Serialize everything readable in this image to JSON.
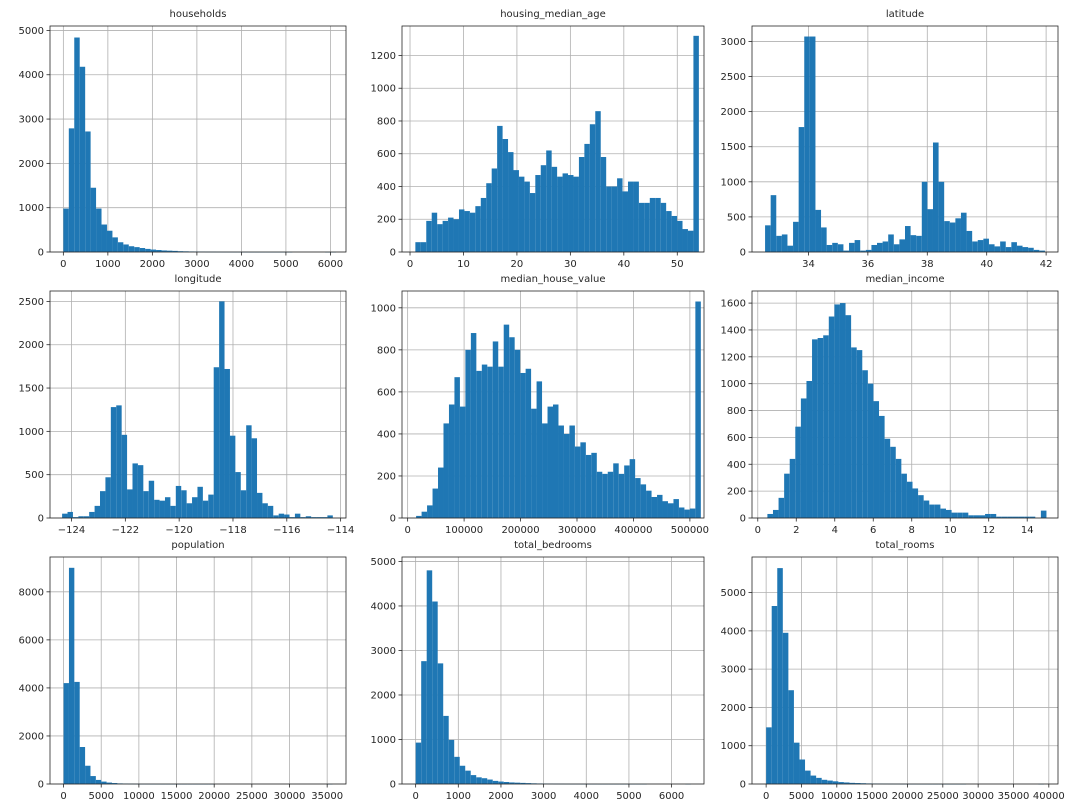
{
  "bar_color": "#1f77b4",
  "chart_data": [
    {
      "type": "bar",
      "title": "households",
      "bin_start": 0,
      "bin_width": 122.5,
      "values": [
        980,
        2790,
        4840,
        4180,
        2720,
        1450,
        980,
        620,
        480,
        330,
        220,
        170,
        130,
        110,
        90,
        70,
        55,
        45,
        35,
        30,
        25,
        18,
        15,
        12,
        10,
        8,
        6,
        5,
        4,
        3,
        3,
        2,
        2,
        2,
        1,
        1,
        1,
        1,
        1,
        1,
        1,
        1,
        0,
        0,
        0,
        0,
        0,
        0,
        1,
        1
      ],
      "xlim": [
        -300,
        6350
      ],
      "ylim": [
        0,
        5100
      ],
      "xticks": [
        0,
        1000,
        2000,
        3000,
        4000,
        5000,
        6000
      ],
      "xtick_labels": [
        "0",
        "1000",
        "2000",
        "3000",
        "4000",
        "5000",
        "6000"
      ],
      "yticks": [
        0,
        1000,
        2000,
        3000,
        4000,
        5000
      ],
      "ytick_labels": [
        "0",
        "1000",
        "2000",
        "3000",
        "4000",
        "5000"
      ],
      "grid": true
    },
    {
      "type": "bar",
      "title": "housing_median_age",
      "bin_start": 1,
      "bin_width": 1.02,
      "values": [
        60,
        60,
        190,
        240,
        170,
        190,
        210,
        200,
        260,
        250,
        240,
        280,
        330,
        420,
        510,
        770,
        690,
        610,
        500,
        460,
        430,
        360,
        470,
        530,
        620,
        520,
        460,
        480,
        470,
        460,
        580,
        660,
        780,
        860,
        580,
        400,
        400,
        450,
        370,
        430,
        430,
        300,
        300,
        330,
        330,
        300,
        250,
        220,
        190,
        140,
        130,
        1320
      ],
      "xlim": [
        -1.5,
        55
      ],
      "ylim": [
        0,
        1380
      ],
      "xticks": [
        0,
        10,
        20,
        30,
        40,
        50
      ],
      "xtick_labels": [
        "0",
        "10",
        "20",
        "30",
        "40",
        "50"
      ],
      "yticks": [
        0,
        200,
        400,
        600,
        800,
        1000,
        1200
      ],
      "ytick_labels": [
        "0",
        "200",
        "400",
        "600",
        "800",
        "1000",
        "1200"
      ],
      "grid": true
    },
    {
      "type": "bar",
      "title": "latitude",
      "bin_start": 32.54,
      "bin_width": 0.1884,
      "values": [
        380,
        810,
        230,
        250,
        90,
        430,
        1780,
        3070,
        3070,
        600,
        350,
        100,
        130,
        110,
        20,
        130,
        170,
        20,
        30,
        100,
        130,
        150,
        250,
        110,
        180,
        370,
        240,
        230,
        1000,
        610,
        1560,
        1000,
        440,
        420,
        480,
        560,
        300,
        150,
        170,
        190,
        110,
        80,
        150,
        70,
        140,
        90,
        70,
        60,
        30,
        20
      ],
      "xlim": [
        32.1,
        42.4
      ],
      "ylim": [
        0,
        3220
      ],
      "xticks": [
        34,
        36,
        38,
        40,
        42
      ],
      "xtick_labels": [
        "34",
        "36",
        "38",
        "40",
        "42"
      ],
      "yticks": [
        0,
        500,
        1000,
        1500,
        2000,
        2500,
        3000
      ],
      "ytick_labels": [
        "0",
        "500",
        "1000",
        "1500",
        "2000",
        "2500",
        "3000"
      ],
      "grid": true
    },
    {
      "type": "bar",
      "title": "longitude",
      "bin_start": -124.35,
      "bin_width": 0.2012,
      "values": [
        50,
        70,
        10,
        20,
        20,
        70,
        140,
        310,
        470,
        1280,
        1300,
        960,
        330,
        630,
        610,
        310,
        430,
        210,
        200,
        240,
        140,
        370,
        320,
        170,
        240,
        360,
        200,
        270,
        1740,
        2500,
        1720,
        950,
        530,
        320,
        1070,
        920,
        290,
        170,
        140,
        30,
        50,
        40,
        10,
        50,
        10,
        20,
        10,
        10,
        10,
        30
      ],
      "xlim": [
        -124.8,
        -113.8
      ],
      "ylim": [
        0,
        2620
      ],
      "xticks": [
        -124,
        -122,
        -120,
        -118,
        -116,
        -114
      ],
      "xtick_labels": [
        "−124",
        "−122",
        "−120",
        "−118",
        "−116",
        "−114"
      ],
      "yticks": [
        0,
        500,
        1000,
        1500,
        2000,
        2500
      ],
      "ytick_labels": [
        "0",
        "500",
        "1000",
        "1500",
        "2000",
        "2500"
      ],
      "grid": true
    },
    {
      "type": "bar",
      "title": "median_house_value",
      "bin_start": 14999,
      "bin_width": 9700,
      "values": [
        10,
        30,
        60,
        140,
        240,
        450,
        540,
        670,
        530,
        800,
        880,
        700,
        730,
        720,
        840,
        720,
        920,
        860,
        800,
        690,
        710,
        520,
        650,
        450,
        530,
        540,
        440,
        400,
        440,
        340,
        360,
        300,
        310,
        220,
        210,
        220,
        260,
        210,
        250,
        280,
        190,
        160,
        130,
        100,
        110,
        80,
        70,
        90,
        50,
        40,
        45,
        1030
      ],
      "xlim": [
        -10000,
        525000
      ],
      "ylim": [
        0,
        1080
      ],
      "xticks": [
        0,
        100000,
        200000,
        300000,
        400000,
        500000
      ],
      "xtick_labels": [
        "0",
        "100000",
        "200000",
        "300000",
        "400000",
        "500000"
      ],
      "yticks": [
        0,
        200,
        400,
        600,
        800,
        1000
      ],
      "ytick_labels": [
        "0",
        "200",
        "400",
        "600",
        "800",
        "1000"
      ],
      "grid": true
    },
    {
      "type": "bar",
      "title": "median_income",
      "bin_start": 0.5,
      "bin_width": 0.29,
      "values": [
        30,
        60,
        150,
        330,
        440,
        680,
        890,
        1020,
        1330,
        1340,
        1360,
        1500,
        1590,
        1600,
        1510,
        1270,
        1250,
        1100,
        1000,
        870,
        760,
        590,
        530,
        440,
        330,
        270,
        220,
        170,
        130,
        100,
        100,
        70,
        60,
        40,
        40,
        40,
        20,
        20,
        20,
        30,
        30,
        10,
        10,
        10,
        10,
        10,
        10,
        10,
        0,
        55
      ],
      "xlim": [
        -0.3,
        15.6
      ],
      "ylim": [
        0,
        1690
      ],
      "xticks": [
        0,
        2,
        4,
        6,
        8,
        10,
        12,
        14
      ],
      "xtick_labels": [
        "0",
        "2",
        "4",
        "6",
        "8",
        "10",
        "12",
        "14"
      ],
      "yticks": [
        0,
        200,
        400,
        600,
        800,
        1000,
        1200,
        1400,
        1600
      ],
      "ytick_labels": [
        "0",
        "200",
        "400",
        "600",
        "800",
        "1000",
        "1200",
        "1400",
        "1600"
      ],
      "grid": true
    },
    {
      "type": "bar",
      "title": "population",
      "bin_start": 3,
      "bin_width": 714,
      "values": [
        4200,
        9000,
        4250,
        1540,
        760,
        330,
        170,
        100,
        60,
        40,
        25,
        18,
        12,
        8,
        6,
        5,
        4,
        3,
        2,
        2,
        1,
        1,
        1,
        1,
        1,
        1,
        1,
        1,
        0,
        0,
        0,
        0,
        0,
        0,
        0,
        0,
        0,
        0,
        0,
        0,
        0,
        0,
        0,
        0,
        0,
        0,
        0,
        0,
        0,
        1
      ],
      "xlim": [
        -1800,
        37500
      ],
      "ylim": [
        0,
        9450
      ],
      "xticks": [
        0,
        5000,
        10000,
        15000,
        20000,
        25000,
        30000,
        35000
      ],
      "xtick_labels": [
        "0",
        "5000",
        "10000",
        "15000",
        "20000",
        "25000",
        "30000",
        "35000"
      ],
      "yticks": [
        0,
        2000,
        4000,
        6000,
        8000
      ],
      "ytick_labels": [
        "0",
        "2000",
        "4000",
        "6000",
        "8000"
      ],
      "grid": true
    },
    {
      "type": "bar",
      "title": "total_bedrooms",
      "bin_start": 1,
      "bin_width": 129,
      "values": [
        930,
        2760,
        4800,
        4100,
        2710,
        1530,
        990,
        610,
        410,
        300,
        200,
        150,
        130,
        100,
        70,
        55,
        45,
        35,
        30,
        25,
        20,
        15,
        12,
        10,
        8,
        6,
        5,
        4,
        3,
        3,
        2,
        2,
        2,
        1,
        1,
        1,
        1,
        1,
        1,
        1,
        1,
        1,
        0,
        0,
        0,
        0,
        0,
        0,
        0,
        1
      ],
      "xlim": [
        -320,
        6760
      ],
      "ylim": [
        0,
        5100
      ],
      "xticks": [
        0,
        1000,
        2000,
        3000,
        4000,
        5000,
        6000
      ],
      "xtick_labels": [
        "0",
        "1000",
        "2000",
        "3000",
        "4000",
        "5000",
        "6000"
      ],
      "yticks": [
        0,
        1000,
        2000,
        3000,
        4000,
        5000
      ],
      "ytick_labels": [
        "0",
        "1000",
        "2000",
        "3000",
        "4000",
        "5000"
      ],
      "grid": true
    },
    {
      "type": "bar",
      "title": "total_rooms",
      "bin_start": 2,
      "bin_width": 786,
      "values": [
        1480,
        4650,
        5640,
        3950,
        2450,
        1080,
        640,
        350,
        220,
        160,
        110,
        90,
        70,
        50,
        40,
        30,
        25,
        20,
        15,
        12,
        10,
        8,
        6,
        5,
        4,
        3,
        3,
        2,
        2,
        1,
        1,
        1,
        1,
        1,
        1,
        1,
        0,
        0,
        0,
        0,
        0,
        0,
        0,
        0,
        0,
        0,
        0,
        0,
        0,
        1
      ],
      "xlim": [
        -2000,
        41300
      ],
      "ylim": [
        0,
        5930
      ],
      "xticks": [
        0,
        5000,
        10000,
        15000,
        20000,
        25000,
        30000,
        35000,
        40000
      ],
      "xtick_labels": [
        "0",
        "5000",
        "10000",
        "15000",
        "20000",
        "25000",
        "30000",
        "35000",
        "40000"
      ],
      "yticks": [
        0,
        1000,
        2000,
        3000,
        4000,
        5000
      ],
      "ytick_labels": [
        "0",
        "1000",
        "2000",
        "3000",
        "4000",
        "5000"
      ],
      "grid": true
    }
  ]
}
